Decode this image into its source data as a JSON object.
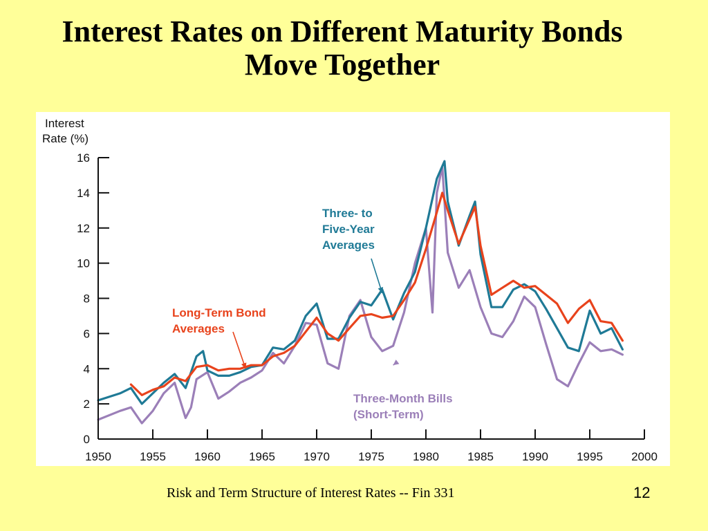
{
  "slide": {
    "title_line1": "Interest Rates on Different Maturity Bonds",
    "title_line2": "Move Together",
    "footer": "Risk and Term Structure of Interest Rates -- Fin 331",
    "page_number": "12"
  },
  "chart_data": {
    "type": "line",
    "ylabel_line1": "Interest",
    "ylabel_line2": "Rate (%)",
    "xlim": [
      1950,
      2000
    ],
    "ylim": [
      0,
      16
    ],
    "x_ticks": [
      "1950",
      "1955",
      "1960",
      "1965",
      "1970",
      "1975",
      "1980",
      "1985",
      "1990",
      "1995",
      "2000"
    ],
    "y_ticks": [
      "0",
      "2",
      "4",
      "6",
      "8",
      "10",
      "12",
      "14",
      "16"
    ],
    "grid": false,
    "series": [
      {
        "key": "long",
        "color": "#e8431c",
        "points": [
          [
            1953,
            3.1
          ],
          [
            1954,
            2.5
          ],
          [
            1955,
            2.8
          ],
          [
            1956,
            3.0
          ],
          [
            1957,
            3.5
          ],
          [
            1958,
            3.3
          ],
          [
            1959,
            4.1
          ],
          [
            1960,
            4.2
          ],
          [
            1961,
            3.9
          ],
          [
            1962,
            4.0
          ],
          [
            1963,
            4.0
          ],
          [
            1964,
            4.2
          ],
          [
            1965,
            4.2
          ],
          [
            1966,
            4.7
          ],
          [
            1967,
            4.9
          ],
          [
            1968,
            5.3
          ],
          [
            1969,
            6.1
          ],
          [
            1970,
            6.9
          ],
          [
            1971,
            6.0
          ],
          [
            1972,
            5.6
          ],
          [
            1973,
            6.3
          ],
          [
            1974,
            7.0
          ],
          [
            1975,
            7.1
          ],
          [
            1976,
            6.9
          ],
          [
            1977,
            7.0
          ],
          [
            1978,
            7.9
          ],
          [
            1979,
            8.9
          ],
          [
            1980,
            10.8
          ],
          [
            1981,
            12.9
          ],
          [
            1981.5,
            14.0
          ],
          [
            1982,
            13.0
          ],
          [
            1983,
            11.1
          ],
          [
            1984,
            12.5
          ],
          [
            1984.5,
            13.2
          ],
          [
            1985,
            11.0
          ],
          [
            1986,
            8.2
          ],
          [
            1987,
            8.6
          ],
          [
            1988,
            9.0
          ],
          [
            1989,
            8.6
          ],
          [
            1990,
            8.7
          ],
          [
            1991,
            8.2
          ],
          [
            1992,
            7.7
          ],
          [
            1993,
            6.6
          ],
          [
            1994,
            7.4
          ],
          [
            1995,
            7.9
          ],
          [
            1996,
            6.7
          ],
          [
            1997,
            6.6
          ],
          [
            1998,
            5.6
          ]
        ]
      },
      {
        "key": "mid",
        "color": "#1f7a96",
        "points": [
          [
            1950,
            2.2
          ],
          [
            1952,
            2.6
          ],
          [
            1953,
            2.9
          ],
          [
            1954,
            2.0
          ],
          [
            1955,
            2.6
          ],
          [
            1956,
            3.2
          ],
          [
            1957,
            3.7
          ],
          [
            1958,
            2.9
          ],
          [
            1959,
            4.7
          ],
          [
            1959.6,
            5.0
          ],
          [
            1960,
            3.9
          ],
          [
            1961,
            3.6
          ],
          [
            1962,
            3.6
          ],
          [
            1963,
            3.8
          ],
          [
            1964,
            4.1
          ],
          [
            1965,
            4.2
          ],
          [
            1966,
            5.2
          ],
          [
            1967,
            5.1
          ],
          [
            1968,
            5.6
          ],
          [
            1969,
            7.0
          ],
          [
            1970,
            7.7
          ],
          [
            1971,
            5.7
          ],
          [
            1972,
            5.7
          ],
          [
            1973,
            6.9
          ],
          [
            1974,
            7.8
          ],
          [
            1975,
            7.6
          ],
          [
            1976,
            8.5
          ],
          [
            1977,
            6.8
          ],
          [
            1978,
            8.3
          ],
          [
            1979,
            9.5
          ],
          [
            1980,
            12.0
          ],
          [
            1981,
            14.8
          ],
          [
            1981.7,
            15.8
          ],
          [
            1982,
            13.5
          ],
          [
            1983,
            11.0
          ],
          [
            1984,
            12.7
          ],
          [
            1984.5,
            13.5
          ],
          [
            1985,
            10.5
          ],
          [
            1986,
            7.5
          ],
          [
            1987,
            7.5
          ],
          [
            1988,
            8.5
          ],
          [
            1989,
            8.8
          ],
          [
            1990,
            8.4
          ],
          [
            1991,
            7.4
          ],
          [
            1992,
            6.3
          ],
          [
            1993,
            5.2
          ],
          [
            1994,
            5.0
          ],
          [
            1995,
            7.3
          ],
          [
            1996,
            6.0
          ],
          [
            1997,
            6.3
          ],
          [
            1998,
            5.1
          ]
        ]
      },
      {
        "key": "short",
        "color": "#9b7fb8",
        "points": [
          [
            1950,
            1.1
          ],
          [
            1952,
            1.6
          ],
          [
            1953,
            1.8
          ],
          [
            1954,
            0.9
          ],
          [
            1955,
            1.6
          ],
          [
            1956,
            2.6
          ],
          [
            1957,
            3.2
          ],
          [
            1958,
            1.2
          ],
          [
            1958.5,
            1.8
          ],
          [
            1959,
            3.4
          ],
          [
            1960,
            3.8
          ],
          [
            1961,
            2.3
          ],
          [
            1962,
            2.7
          ],
          [
            1963,
            3.2
          ],
          [
            1964,
            3.5
          ],
          [
            1965,
            3.9
          ],
          [
            1966,
            4.9
          ],
          [
            1967,
            4.3
          ],
          [
            1968,
            5.3
          ],
          [
            1969,
            6.6
          ],
          [
            1970,
            6.5
          ],
          [
            1971,
            4.3
          ],
          [
            1972,
            4.0
          ],
          [
            1973,
            7.0
          ],
          [
            1974,
            7.9
          ],
          [
            1975,
            5.8
          ],
          [
            1976,
            5.0
          ],
          [
            1977,
            5.3
          ],
          [
            1978,
            7.2
          ],
          [
            1979,
            10.0
          ],
          [
            1980,
            12.0
          ],
          [
            1980.6,
            7.2
          ],
          [
            1981,
            14.0
          ],
          [
            1981.5,
            15.5
          ],
          [
            1982,
            10.6
          ],
          [
            1983,
            8.6
          ],
          [
            1984,
            9.6
          ],
          [
            1985,
            7.5
          ],
          [
            1986,
            6.0
          ],
          [
            1987,
            5.8
          ],
          [
            1988,
            6.7
          ],
          [
            1989,
            8.1
          ],
          [
            1990,
            7.5
          ],
          [
            1991,
            5.4
          ],
          [
            1992,
            3.4
          ],
          [
            1993,
            3.0
          ],
          [
            1994,
            4.3
          ],
          [
            1995,
            5.5
          ],
          [
            1996,
            5.0
          ],
          [
            1997,
            5.1
          ],
          [
            1998,
            4.8
          ]
        ]
      }
    ],
    "annotations": [
      {
        "key": "mid",
        "lines": [
          "Three- to",
          "Five-Year",
          "Averages"
        ],
        "color": "#1f7a96",
        "point": [
          1976,
          8.3
        ]
      },
      {
        "key": "long",
        "lines": [
          "Long-Term Bond",
          "Averages"
        ],
        "color": "#e8431c",
        "point": [
          1963.5,
          4.0
        ]
      },
      {
        "key": "short",
        "lines": [
          "Three-Month Bills",
          "(Short-Term)"
        ],
        "color": "#9b7fb8",
        "point": [
          1977,
          4.2
        ]
      }
    ]
  }
}
